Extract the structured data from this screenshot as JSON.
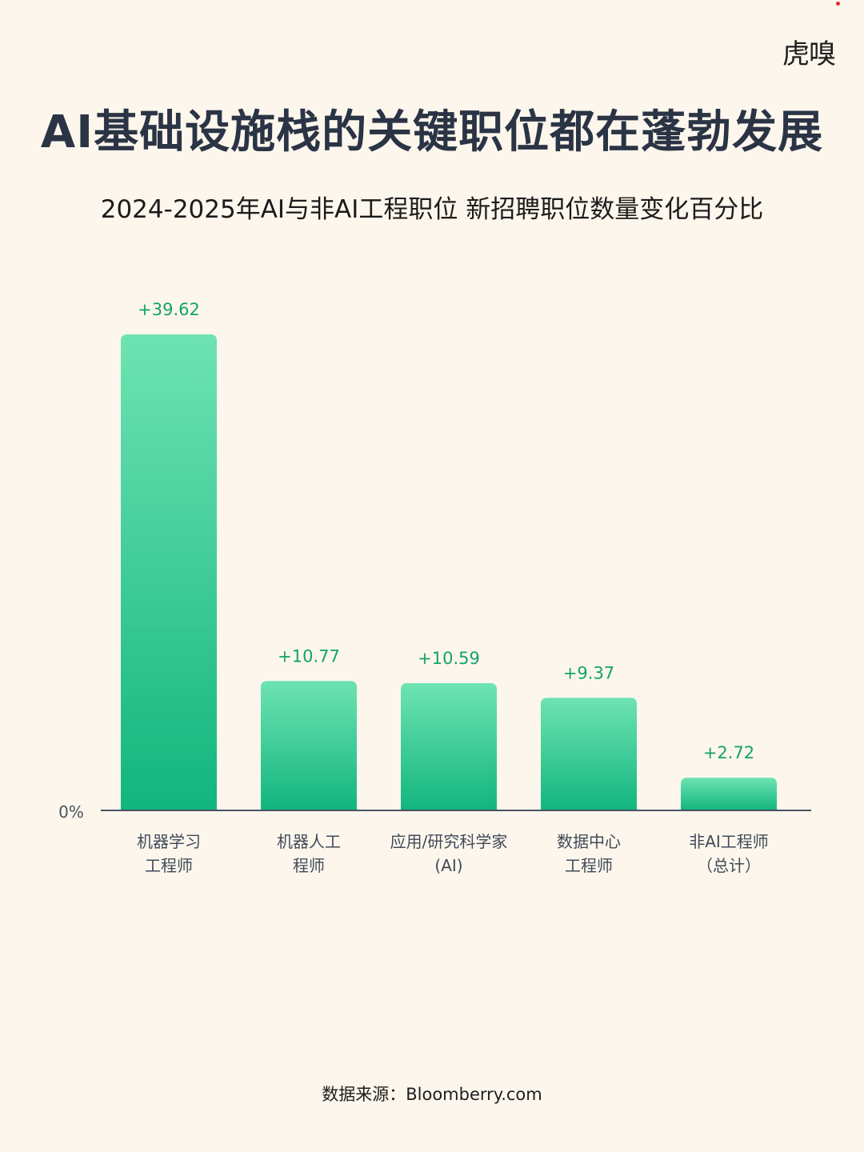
{
  "brand": {
    "logo_text": "虎嗅"
  },
  "title": "AI基础设施栈的关键职位都在蓬勃发展",
  "subtitle": "2024-2025年AI与非AI工程职位 新招聘职位数量变化百分比",
  "source": "数据来源：Bloomberry.com",
  "colors": {
    "background": "#fcf6ec",
    "bar_top": "#6ee3b3",
    "bar_bottom": "#12b57e",
    "value_label": "#12a36b",
    "axis": "#4a5262",
    "text": "#2a3342"
  },
  "chart_data": {
    "type": "bar",
    "categories": [
      [
        "机器学习",
        "工程师"
      ],
      [
        "机器人工",
        "程师"
      ],
      [
        "应用/研究科学家",
        "(AI)"
      ],
      [
        "数据中心",
        "工程师"
      ],
      [
        "非AI工程师",
        "（总计）"
      ]
    ],
    "values": [
      39.62,
      10.77,
      10.59,
      9.37,
      2.72
    ],
    "value_labels": [
      "+39.62",
      "+10.77",
      "+10.59",
      "+9.37",
      "+2.72"
    ],
    "zero_label": "0%",
    "ylim": [
      0,
      40
    ],
    "grid": false,
    "legend": "none"
  }
}
